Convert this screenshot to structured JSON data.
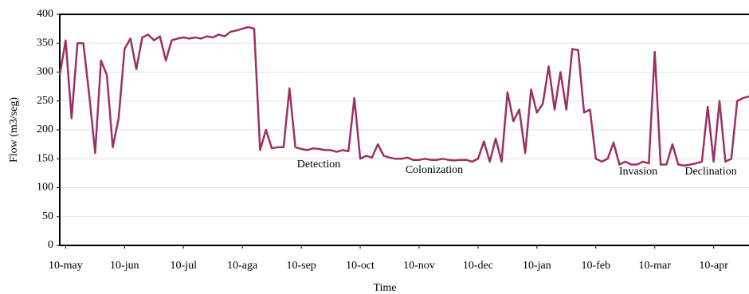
{
  "chart_data": {
    "type": "line",
    "x_label": "Time",
    "y_label": "Flow (m3/seg)",
    "categories": [
      null,
      "10-may",
      null,
      null,
      null,
      null,
      null,
      null,
      null,
      null,
      null,
      "10-jun",
      null,
      null,
      null,
      null,
      null,
      null,
      null,
      null,
      null,
      "10-jul",
      null,
      null,
      null,
      null,
      null,
      null,
      null,
      null,
      null,
      "10-aga",
      null,
      null,
      null,
      null,
      null,
      null,
      null,
      null,
      null,
      "10-sep",
      null,
      null,
      null,
      null,
      null,
      null,
      null,
      null,
      null,
      "10-oct",
      null,
      null,
      null,
      null,
      null,
      null,
      null,
      null,
      null,
      "10-nov",
      null,
      null,
      null,
      null,
      null,
      null,
      null,
      null,
      null,
      "10-dec",
      null,
      null,
      null,
      null,
      null,
      null,
      null,
      null,
      null,
      "10-jan",
      null,
      null,
      null,
      null,
      null,
      null,
      null,
      null,
      null,
      "10-feb",
      null,
      null,
      null,
      null,
      null,
      null,
      null,
      null,
      null,
      "10-mar",
      null,
      null,
      null,
      null,
      null,
      null,
      null,
      null,
      null,
      "10-apr",
      null,
      null,
      null,
      null,
      null,
      null
    ],
    "series": [
      {
        "name": "Flow",
        "color": "#9b3067",
        "values": [
          295,
          355,
          220,
          350,
          350,
          260,
          160,
          320,
          295,
          170,
          220,
          340,
          358,
          305,
          360,
          365,
          355,
          362,
          320,
          355,
          358,
          360,
          358,
          360,
          358,
          362,
          360,
          365,
          362,
          370,
          372,
          375,
          378,
          375,
          165,
          200,
          168,
          170,
          170,
          272,
          170,
          167,
          165,
          168,
          167,
          165,
          165,
          162,
          165,
          163,
          255,
          150,
          155,
          152,
          175,
          155,
          152,
          150,
          150,
          152,
          148,
          148,
          150,
          148,
          148,
          150,
          148,
          147,
          148,
          148,
          145,
          150,
          180,
          145,
          185,
          145,
          265,
          215,
          235,
          160,
          270,
          230,
          245,
          310,
          235,
          300,
          235,
          340,
          338,
          230,
          235,
          150,
          145,
          150,
          178,
          140,
          145,
          140,
          140,
          145,
          142,
          335,
          140,
          140,
          175,
          140,
          138,
          140,
          142,
          145,
          240,
          145,
          250,
          145,
          150,
          250,
          255,
          258
        ]
      }
    ],
    "annotations": [
      "Detection",
      "Colonization",
      "Invasion",
      "Declination"
    ],
    "ylim": [
      0,
      400
    ],
    "yticks": [
      0,
      50,
      100,
      150,
      200,
      250,
      300,
      350,
      400
    ],
    "grid": true
  }
}
